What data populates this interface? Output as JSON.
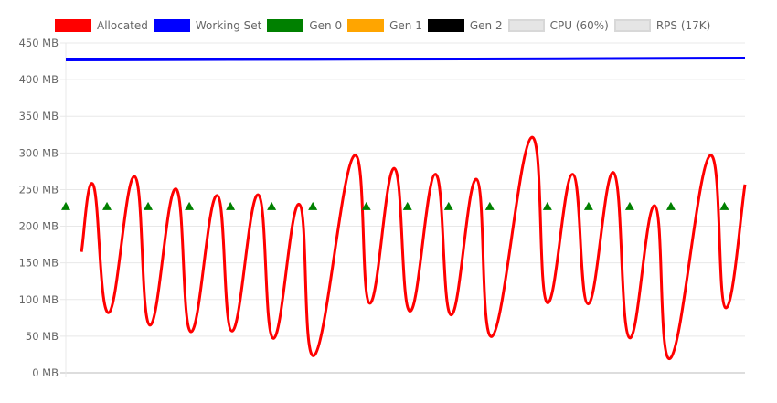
{
  "chart_data": {
    "type": "line",
    "title": "",
    "xlabel": "",
    "ylabel": "",
    "ylim": [
      0,
      450
    ],
    "xlim": [
      0,
      165
    ],
    "y_ticks": [
      "0 MB",
      "50 MB",
      "100 MB",
      "150 MB",
      "200 MB",
      "250 MB",
      "300 MB",
      "350 MB",
      "400 MB",
      "450 MB"
    ],
    "grid": true,
    "legend_position": "top",
    "legend": [
      {
        "label": "Allocated",
        "color": "#ff0000",
        "hidden": false
      },
      {
        "label": "Working Set",
        "color": "#0000ff",
        "hidden": false
      },
      {
        "label": "Gen 0",
        "color": "#008000",
        "hidden": false
      },
      {
        "label": "Gen 1",
        "color": "#ffa500",
        "hidden": false
      },
      {
        "label": "Gen 2",
        "color": "#000000",
        "hidden": false
      },
      {
        "label": "CPU (60%)",
        "color": "#e5e5e5",
        "hidden": true
      },
      {
        "label": "RPS (17K)",
        "color": "#e5e5e5",
        "hidden": true
      }
    ],
    "series": [
      {
        "name": "Allocated",
        "color": "#ff0000",
        "x": [
          3.8,
          6.7,
          10.4,
          16.7,
          20.4,
          26.7,
          30.4,
          36.7,
          40.4,
          46.7,
          50.4,
          56.7,
          60.4,
          70,
          73.8,
          79.8,
          83.6,
          89.8,
          93.6,
          99.8,
          103.6,
          113.1,
          116.9,
          123.1,
          126.9,
          133.1,
          136.9,
          143.1,
          146.9,
          156.4,
          160.2,
          165
        ],
        "y": [
          165,
          256,
          82,
          268,
          65,
          251,
          56,
          242,
          57,
          243,
          47,
          230,
          24,
          296,
          95,
          279,
          84,
          271,
          79,
          264,
          50,
          321,
          96,
          271,
          94,
          273,
          48,
          228,
          20,
          296,
          89,
          257
        ]
      },
      {
        "name": "Working Set",
        "color": "#0000ff",
        "x": [
          0,
          40,
          80,
          120,
          165
        ],
        "y": [
          427,
          427.5,
          428,
          428.5,
          429.5
        ]
      },
      {
        "name": "Gen 0",
        "color": "#008000",
        "marker": "triangle",
        "x": [
          0,
          10,
          20,
          30,
          40,
          50,
          60,
          73,
          83,
          93,
          103,
          117,
          127,
          137,
          147,
          160
        ],
        "y": [
          227,
          227,
          227,
          227,
          227,
          227,
          227,
          227,
          227,
          227,
          227,
          227,
          227,
          227,
          227,
          227
        ]
      }
    ]
  }
}
